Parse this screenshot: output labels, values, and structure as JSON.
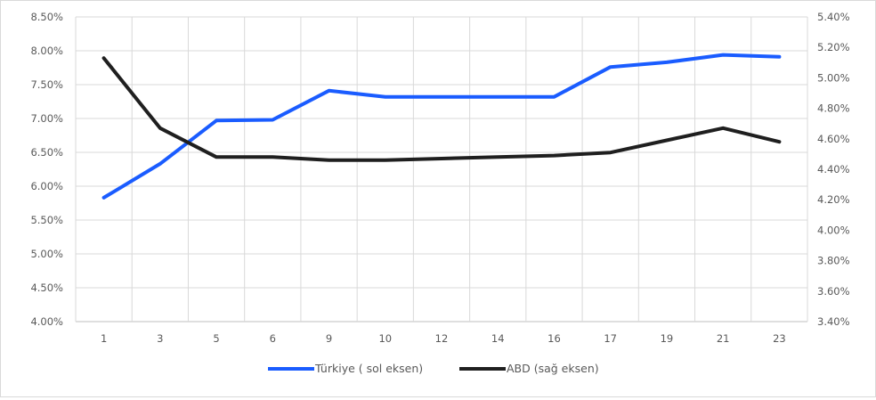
{
  "chart_data": {
    "type": "line",
    "title": "",
    "xlabel": "",
    "ylabel": "",
    "categories": [
      "1",
      "3",
      "5",
      "6",
      "9",
      "10",
      "12",
      "14",
      "16",
      "17",
      "19",
      "21",
      "23"
    ],
    "left_axis": {
      "min": 4.0,
      "max": 8.5,
      "step": 0.5,
      "tick_labels": [
        "4.00%",
        "4.50%",
        "5.00%",
        "5.50%",
        "6.00%",
        "6.50%",
        "7.00%",
        "7.50%",
        "8.00%",
        "8.50%"
      ]
    },
    "right_axis": {
      "min": 3.4,
      "max": 5.4,
      "step": 0.2,
      "tick_labels": [
        "3.40%",
        "3.60%",
        "3.80%",
        "4.00%",
        "4.20%",
        "4.40%",
        "4.60%",
        "4.80%",
        "5.00%",
        "5.20%",
        "5.40%"
      ]
    },
    "grid": true,
    "legend_position": "bottom",
    "series": [
      {
        "name": "Türkiye ( sol eksen)",
        "axis": "left",
        "color": "#1a5cff",
        "values": [
          5.83,
          6.33,
          6.97,
          6.98,
          7.41,
          7.32,
          7.32,
          7.32,
          7.32,
          7.76,
          7.83,
          7.94,
          7.91
        ]
      },
      {
        "name": "ABD (sağ eksen)",
        "axis": "right",
        "color": "#1f1f1f",
        "values": [
          5.13,
          4.67,
          4.48,
          4.48,
          4.46,
          4.46,
          4.47,
          4.48,
          4.49,
          4.51,
          4.59,
          4.67,
          4.58
        ]
      }
    ]
  }
}
